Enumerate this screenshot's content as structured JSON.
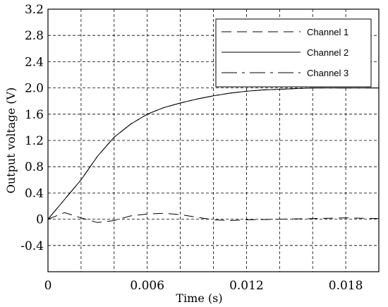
{
  "chart_data": {
    "type": "line",
    "xlabel": "Time (s)",
    "ylabel": "Output voltage (V)",
    "xlim": [
      0,
      0.02
    ],
    "ylim": [
      -0.8,
      3.2
    ],
    "xticks": [
      0,
      0.002,
      0.004,
      0.006,
      0.008,
      0.01,
      0.012,
      0.014,
      0.016,
      0.018,
      0.02
    ],
    "xtick_labels": [
      "0",
      "",
      "",
      "0.006",
      "",
      "",
      "0.012",
      "",
      "",
      "0.018",
      ""
    ],
    "yticks": [
      -0.8,
      -0.4,
      0,
      0.4,
      0.8,
      1.2,
      1.6,
      2.0,
      2.4,
      2.8,
      3.2
    ],
    "ytick_labels": [
      "",
      "-0.4",
      "0",
      "0.4",
      "0.8",
      "1.2",
      "1.6",
      "2.0",
      "2.4",
      "2.8",
      "3.2"
    ],
    "grid": "dashed",
    "legend_position": "top-right",
    "series": [
      {
        "name": "Channel 1",
        "dash": "long-dash",
        "x": [
          0,
          0.001,
          0.002,
          0.003,
          0.004,
          0.005,
          0.006,
          0.007,
          0.008,
          0.009,
          0.01,
          0.011,
          0.012,
          0.013,
          0.014,
          0.015,
          0.016,
          0.017,
          0.018,
          0.019,
          0.02
        ],
        "y": [
          0,
          0.1,
          0.02,
          -0.05,
          -0.02,
          0.05,
          0.08,
          0.09,
          0.07,
          0.03,
          -0.01,
          -0.02,
          -0.01,
          -0.005,
          0.0,
          0.005,
          0.01,
          0.015,
          0.02,
          0.015,
          0.01
        ]
      },
      {
        "name": "Channel 2",
        "dash": "solid",
        "x": [
          0,
          0.001,
          0.002,
          0.003,
          0.004,
          0.005,
          0.006,
          0.007,
          0.008,
          0.009,
          0.01,
          0.011,
          0.012,
          0.013,
          0.014,
          0.015,
          0.016,
          0.017,
          0.018,
          0.019,
          0.02
        ],
        "y": [
          0,
          0.3,
          0.6,
          0.96,
          1.25,
          1.45,
          1.6,
          1.7,
          1.77,
          1.83,
          1.88,
          1.92,
          1.95,
          1.97,
          1.98,
          1.99,
          2.0,
          2.0,
          2.0,
          2.0,
          2.0
        ]
      },
      {
        "name": "Channel 3",
        "dash": "dash-dot",
        "x": [
          0,
          0.001,
          0.002,
          0.003,
          0.004,
          0.005,
          0.006,
          0.007,
          0.008,
          0.009,
          0.01,
          0.011,
          0.012,
          0.013,
          0.014,
          0.015,
          0.016,
          0.017,
          0.018,
          0.019,
          0.02
        ],
        "y": [
          0,
          0.3,
          0.6,
          0.96,
          1.25,
          1.45,
          1.6,
          1.7,
          1.77,
          1.83,
          1.88,
          1.92,
          1.95,
          1.97,
          1.98,
          1.99,
          2.0,
          2.0,
          2.0,
          2.0,
          2.0
        ]
      }
    ]
  }
}
